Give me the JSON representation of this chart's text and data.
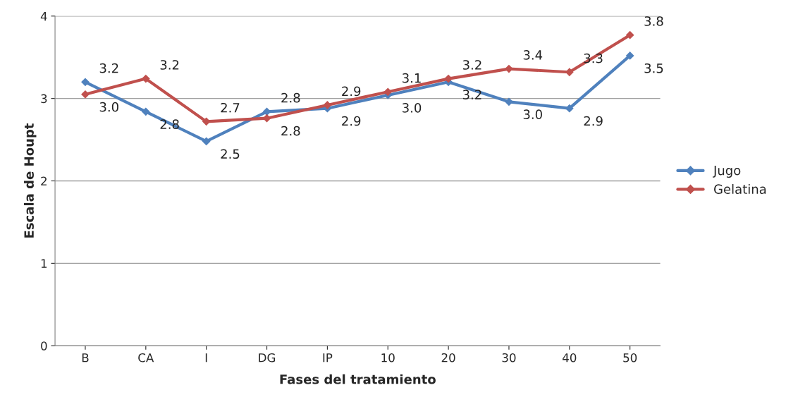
{
  "chart_data": {
    "type": "line",
    "xlabel": "Fases del tratamiento",
    "ylabel": "Escala de Houpt",
    "categories": [
      "B",
      "CA",
      "I",
      "DG",
      "IP",
      "10",
      "20",
      "30",
      "40",
      "50"
    ],
    "series": [
      {
        "name": "Jugo",
        "color": "#4f81bd",
        "values": [
          3.2,
          2.84,
          2.48,
          2.84,
          2.88,
          3.04,
          3.2,
          2.96,
          2.88,
          3.52
        ],
        "value_labels": [
          "3.2",
          "2.8",
          "2.5",
          "2.8",
          "2.9",
          "3.0",
          "3.2",
          "3.0",
          "2.9",
          "3.5"
        ]
      },
      {
        "name": "Gelatina",
        "color": "#c0504d",
        "values": [
          3.05,
          3.24,
          2.72,
          2.76,
          2.92,
          3.08,
          3.24,
          3.36,
          3.32,
          3.77
        ],
        "value_labels": [
          "3.0",
          "3.2",
          "2.7",
          "2.8",
          "2.9",
          "3.1",
          "3.2",
          "3.4",
          "3.3",
          "3.8"
        ]
      }
    ],
    "ylim": [
      0,
      4
    ],
    "yticks": [
      0,
      1,
      2,
      3,
      4
    ],
    "grid": "y",
    "legend": "right",
    "marker": "diamond",
    "line_style": "solid"
  }
}
